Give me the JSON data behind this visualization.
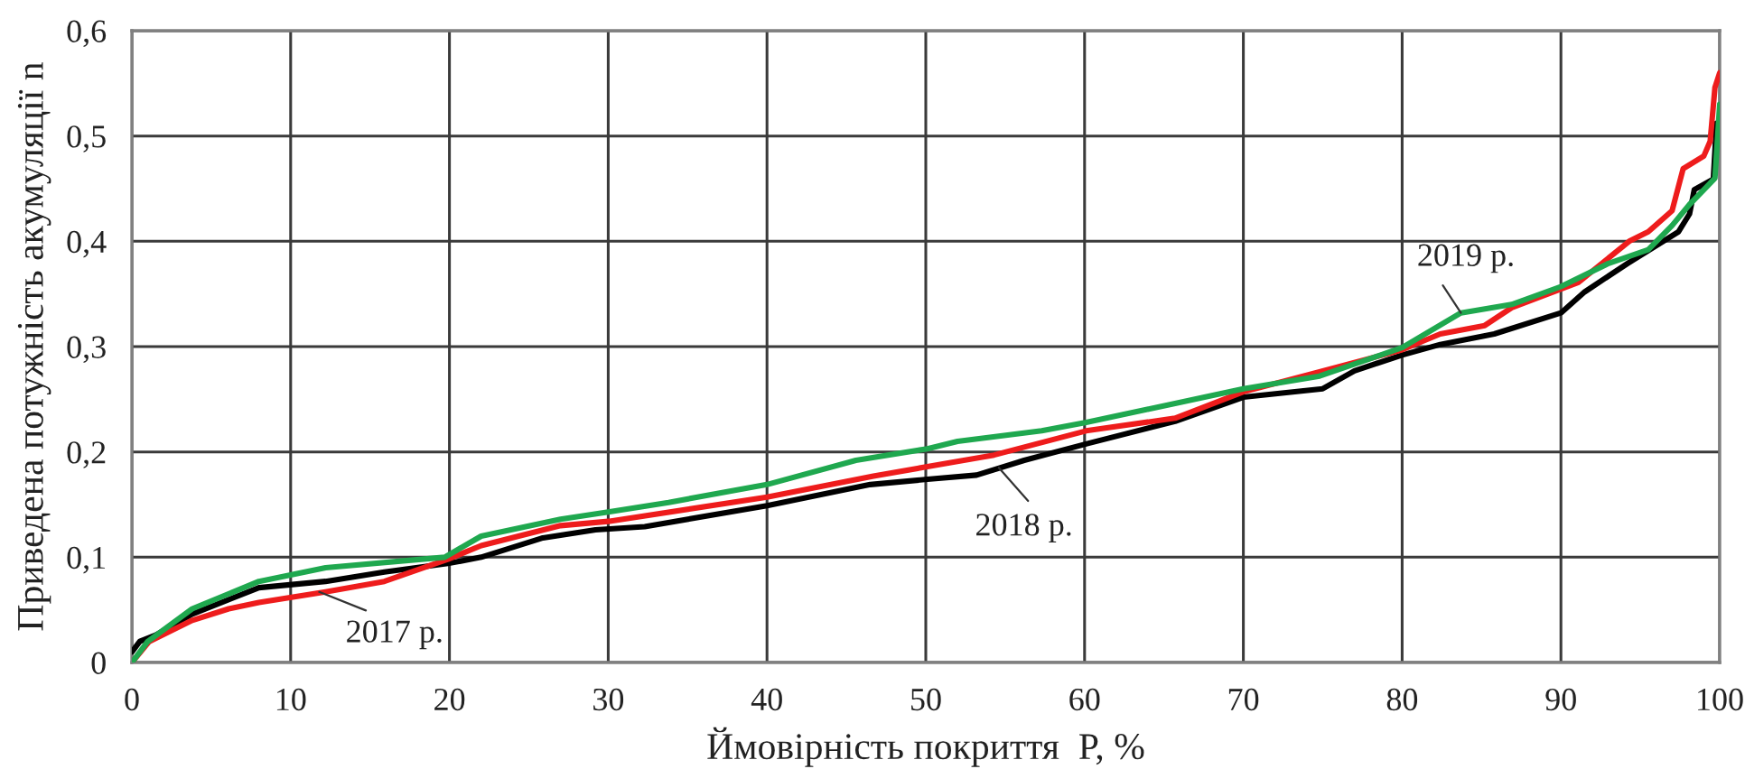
{
  "chart_data": {
    "type": "line",
    "xlabel": "Ймовірність покриття  P, %",
    "ylabel": "Приведена потужність акумуляції n",
    "xlim": [
      0,
      100
    ],
    "ylim": [
      0,
      0.6
    ],
    "xticks": [
      0,
      10,
      20,
      30,
      40,
      50,
      60,
      70,
      80,
      90,
      100
    ],
    "yticks": [
      0,
      {
        "value": 0.1,
        "label": "0,1"
      },
      {
        "value": 0.2,
        "label": "0,2"
      },
      {
        "value": 0.3,
        "label": "0,3"
      },
      {
        "value": 0.4,
        "label": "0,4"
      },
      {
        "value": 0.5,
        "label": "0,5"
      },
      {
        "value": 0.6,
        "label": "0,6"
      }
    ],
    "grid": true,
    "line_style": "solid",
    "marker": "none",
    "series": [
      {
        "color": "#000000",
        "x": [
          0,
          0.5,
          1.5,
          3.8,
          8,
          12.2,
          15.9,
          19.9,
          22,
          25.8,
          29.2,
          32.3,
          40,
          46.5,
          50.1,
          53.2,
          56.2,
          60.2,
          65.7,
          70,
          75,
          77,
          80,
          82.4,
          85.8,
          90,
          91.5,
          94.2,
          97.4,
          98.1,
          98.4,
          99.6,
          99.8,
          100
        ],
        "values": [
          0.01,
          0.02,
          0.026,
          0.046,
          0.071,
          0.077,
          0.086,
          0.094,
          0.1,
          0.118,
          0.126,
          0.129,
          0.149,
          0.169,
          0.174,
          0.178,
          0.192,
          0.208,
          0.229,
          0.252,
          0.26,
          0.277,
          0.292,
          0.302,
          0.312,
          0.332,
          0.352,
          0.379,
          0.409,
          0.426,
          0.449,
          0.459,
          0.512,
          0.512
        ]
      },
      {
        "color": "#ee1c1c",
        "x": [
          0,
          1.1,
          3.8,
          6.1,
          8,
          12.2,
          15.9,
          19.9,
          22,
          27,
          30,
          40,
          46.7,
          50.1,
          54.3,
          60.1,
          65.7,
          70,
          74.8,
          80,
          82.4,
          85.2,
          86.9,
          91.1,
          94.3,
          95.5,
          97,
          97.7,
          99,
          99.4,
          99.7,
          100
        ],
        "values": [
          0,
          0.02,
          0.04,
          0.051,
          0.057,
          0.067,
          0.077,
          0.098,
          0.111,
          0.13,
          0.134,
          0.157,
          0.177,
          0.186,
          0.197,
          0.22,
          0.232,
          0.257,
          0.276,
          0.297,
          0.312,
          0.32,
          0.337,
          0.361,
          0.4,
          0.409,
          0.429,
          0.469,
          0.481,
          0.495,
          0.546,
          0.56
        ]
      },
      {
        "color": "#1fa84f",
        "x": [
          0,
          1,
          3.8,
          8,
          12.2,
          19.7,
          22,
          27,
          30,
          33.8,
          40,
          45.6,
          50.1,
          52,
          57.3,
          60.1,
          65.7,
          70,
          74.8,
          80,
          83.7,
          86.9,
          90,
          93,
          95.5,
          97,
          98.1,
          99.2,
          99.7,
          100
        ],
        "values": [
          0,
          0.02,
          0.051,
          0.077,
          0.09,
          0.1,
          0.12,
          0.136,
          0.143,
          0.152,
          0.169,
          0.192,
          0.203,
          0.21,
          0.22,
          0.228,
          0.246,
          0.26,
          0.272,
          0.299,
          0.332,
          0.34,
          0.357,
          0.379,
          0.392,
          0.415,
          0.435,
          0.452,
          0.46,
          0.53
        ]
      }
    ],
    "annotations": [
      {
        "text": "2017 р.",
        "x": 11.8,
        "y": 0.067
      },
      {
        "text": "2018 р.",
        "x": 54.6,
        "y": 0.185
      },
      {
        "text": "2019 р.",
        "x": 83.7,
        "y": 0.332
      }
    ]
  }
}
